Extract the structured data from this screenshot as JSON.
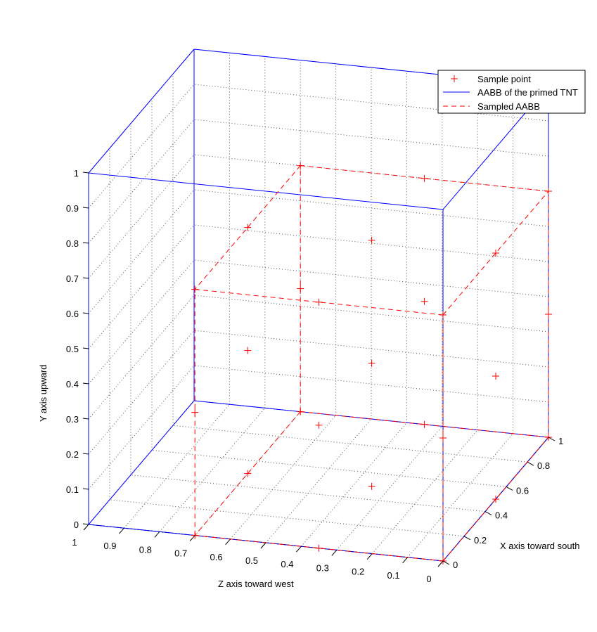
{
  "chart_data": {
    "type": "scatter",
    "view": "3d",
    "axes": {
      "x": {
        "label": "X axis toward south",
        "range": [
          0,
          1
        ],
        "ticks": [
          "0",
          "0.2",
          "0.4",
          "0.6",
          "0.8",
          "1"
        ]
      },
      "y": {
        "label": "Y axis upward",
        "range": [
          0,
          1
        ],
        "ticks": [
          "0",
          "0.1",
          "0.2",
          "0.3",
          "0.4",
          "0.5",
          "0.6",
          "0.7",
          "0.8",
          "0.9",
          "1"
        ]
      },
      "z": {
        "label": "Z axis toward west",
        "range": [
          0,
          1
        ],
        "ticks": [
          "0",
          "0.1",
          "0.2",
          "0.3",
          "0.4",
          "0.5",
          "0.6",
          "0.7",
          "0.8",
          "0.9",
          "1"
        ]
      }
    },
    "grid": true,
    "legend": {
      "placement": "top-right",
      "entries": [
        "Sample point",
        "AABB of the primed TNT",
        "Sampled AABB"
      ]
    },
    "series": [
      {
        "name": "Sample point",
        "style": "plus-marker",
        "color": "#ff0000",
        "points": [
          [
            0,
            0,
            0
          ],
          [
            0,
            0,
            0.35
          ],
          [
            0,
            0,
            0.7
          ],
          [
            0,
            0.35,
            0
          ],
          [
            0,
            0.35,
            0.35
          ],
          [
            0,
            0.35,
            0.7
          ],
          [
            0,
            0.7,
            0
          ],
          [
            0,
            0.7,
            0.35
          ],
          [
            0,
            0.7,
            0.7
          ],
          [
            0.5,
            0,
            0
          ],
          [
            0.5,
            0,
            0.35
          ],
          [
            0.5,
            0,
            0.7
          ],
          [
            0.5,
            0.35,
            0
          ],
          [
            0.5,
            0.35,
            0.35
          ],
          [
            0.5,
            0.35,
            0.7
          ],
          [
            0.5,
            0.7,
            0
          ],
          [
            0.5,
            0.7,
            0.35
          ],
          [
            0.5,
            0.7,
            0.7
          ],
          [
            1,
            0,
            0
          ],
          [
            1,
            0,
            0.35
          ],
          [
            1,
            0,
            0.7
          ],
          [
            1,
            0.35,
            0
          ],
          [
            1,
            0.35,
            0.35
          ],
          [
            1,
            0.35,
            0.7
          ],
          [
            1,
            0.7,
            0
          ],
          [
            1,
            0.7,
            0.35
          ],
          [
            1,
            0.7,
            0.7
          ]
        ]
      },
      {
        "name": "AABB of the primed TNT",
        "style": "solid-line",
        "color": "#0000ff",
        "box": {
          "x": [
            0,
            1
          ],
          "y": [
            0,
            1
          ],
          "z": [
            0,
            1
          ]
        }
      },
      {
        "name": "Sampled AABB",
        "style": "dashed-line",
        "color": "#ff0000",
        "box": {
          "x": [
            0,
            1
          ],
          "y": [
            0,
            0.7
          ],
          "z": [
            0,
            0.7
          ]
        }
      }
    ]
  }
}
